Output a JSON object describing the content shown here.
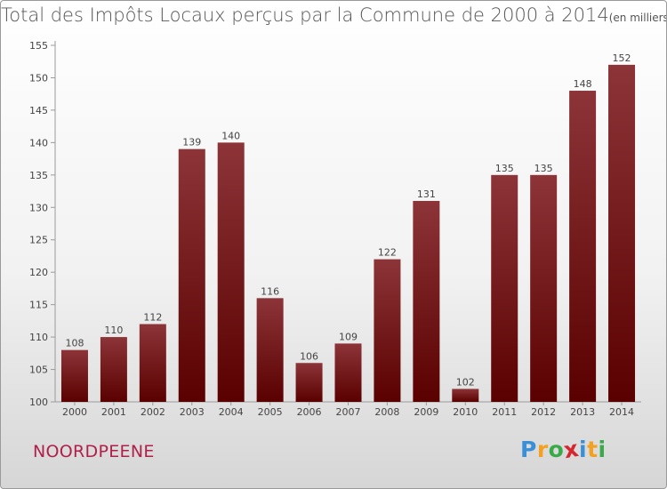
{
  "title": "Total des Impôts Locaux perçus par la Commune de 2000 à 2014",
  "subtitle": "(en milliers d'€)",
  "commune": "NOORDPEENE",
  "logo": {
    "letters": [
      "P",
      "r",
      "o",
      "x",
      "i",
      "t",
      "i"
    ],
    "colors": [
      "#3b8fd6",
      "#f4a020",
      "#3aa94a",
      "#d6262e",
      "#3b8fd6",
      "#f4a020",
      "#3aa94a"
    ]
  },
  "colors": {
    "bar_top": "#8c3438",
    "bar_bottom": "#5a0000",
    "commune_text": "#b0204a"
  },
  "chart_data": {
    "type": "bar",
    "categories": [
      "2000",
      "2001",
      "2002",
      "2003",
      "2004",
      "2005",
      "2006",
      "2007",
      "2008",
      "2009",
      "2010",
      "2011",
      "2012",
      "2013",
      "2014"
    ],
    "values": [
      108,
      110,
      112,
      139,
      140,
      116,
      106,
      109,
      122,
      131,
      102,
      135,
      135,
      148,
      152
    ],
    "ylim": [
      100,
      155
    ],
    "yticks": [
      100,
      105,
      110,
      115,
      120,
      125,
      130,
      135,
      140,
      145,
      150,
      155
    ],
    "data_labels": true,
    "grid": false,
    "legend": "none"
  }
}
